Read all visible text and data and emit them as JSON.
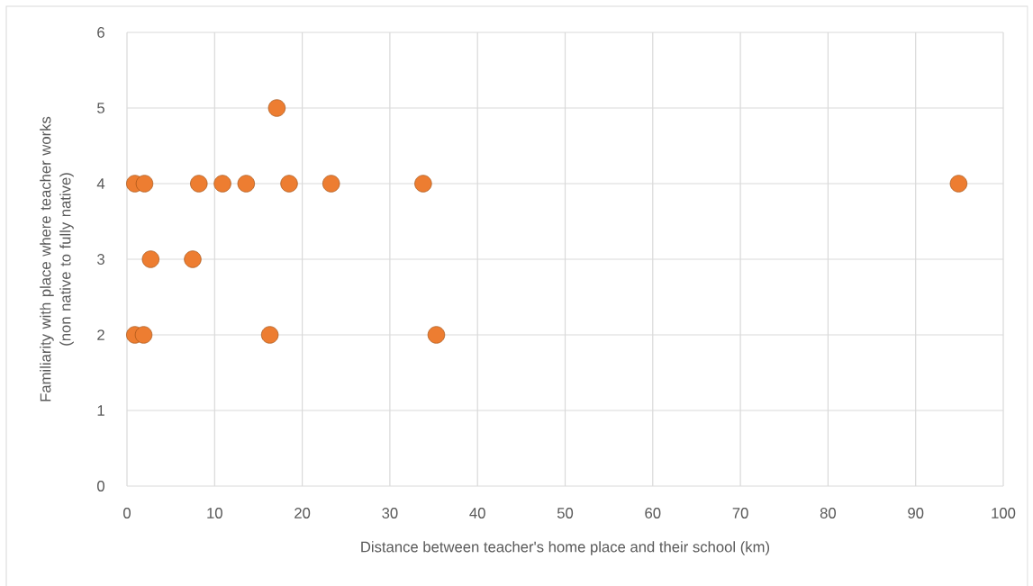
{
  "chart_data": {
    "type": "scatter",
    "xlabel": "Distance between teacher's home place and their school (km)",
    "ylabel": "Familiarity with place where teacher works\n(non native to fully native)",
    "series": [
      {
        "color": "#ed7d31",
        "x": [
          0.9,
          1.9,
          0.9,
          2.0,
          2.7,
          7.5,
          8.2,
          10.9,
          13.6,
          17.1,
          16.3,
          18.5,
          23.3,
          33.8,
          35.3,
          94.9
        ],
        "values": [
          2,
          2,
          4,
          4,
          3,
          3,
          4,
          4,
          4,
          5,
          2,
          4,
          4,
          4,
          2,
          4
        ]
      }
    ],
    "marker": "circle",
    "xlim": [
      0,
      100
    ],
    "xticks": [
      0,
      10,
      20,
      30,
      40,
      50,
      60,
      70,
      80,
      90,
      100
    ],
    "ylim": [
      0,
      6
    ],
    "yticks": [
      0,
      1,
      2,
      3,
      4,
      5,
      6
    ],
    "grid": true
  }
}
